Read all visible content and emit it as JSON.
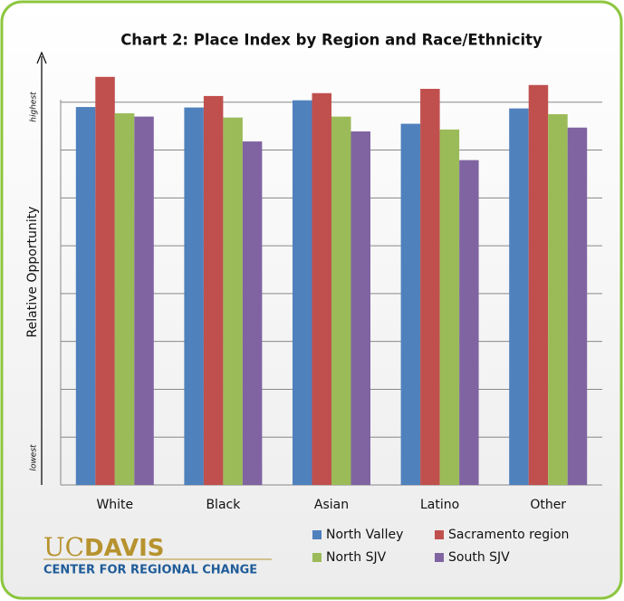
{
  "chart_data": {
    "type": "bar",
    "title": "Chart 2: Place Index by Region and Race/Ethnicity",
    "y_label": "Relative Opportunity",
    "y_top_note": "highest",
    "y_bottom_note": "lowest",
    "categories": [
      "White",
      "Black",
      "Asian",
      "Latino",
      "Other"
    ],
    "series": [
      {
        "name": "North Valley",
        "color": "#4f81bd",
        "values": [
          7.9,
          7.89,
          8.04,
          7.55,
          7.87
        ]
      },
      {
        "name": "Sacramento region",
        "color": "#c0504d",
        "values": [
          8.53,
          8.13,
          8.19,
          8.28,
          8.36
        ]
      },
      {
        "name": "North SJV",
        "color": "#9bbb59",
        "values": [
          7.77,
          7.68,
          7.7,
          7.43,
          7.75
        ]
      },
      {
        "name": "South SJV",
        "color": "#8064a2",
        "values": [
          7.7,
          7.18,
          7.39,
          6.79,
          7.47
        ]
      }
    ],
    "ylim": [
      0,
      9
    ],
    "yticks": [
      0,
      1,
      2,
      3,
      4,
      5,
      6,
      7,
      8
    ],
    "grid": true
  },
  "logo": {
    "uc": "UC",
    "davis": "DAVIS",
    "subtitle": "CENTER FOR REGIONAL CHANGE"
  }
}
